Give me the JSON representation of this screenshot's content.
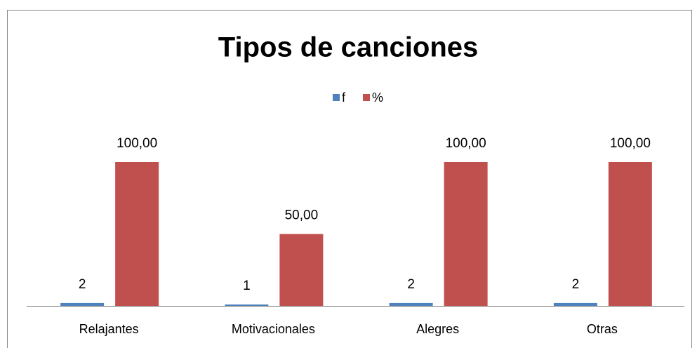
{
  "chart_data": {
    "type": "bar",
    "title": "Tipos de canciones",
    "categories": [
      "Relajantes",
      "Motivacionales",
      "Alegres",
      "Otras"
    ],
    "series": [
      {
        "name": "f",
        "color": "#4f81bd",
        "values": [
          2,
          1,
          2,
          2
        ]
      },
      {
        "name": "%",
        "color": "#c0504d",
        "values": [
          100,
          50,
          100,
          100
        ],
        "value_labels": [
          "100,00",
          "50,00",
          "100,00",
          "100,00"
        ]
      }
    ],
    "ylim": [
      0,
      100
    ],
    "legend": "top"
  }
}
